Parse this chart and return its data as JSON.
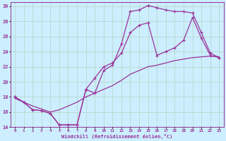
{
  "xlabel": "Windchill (Refroidissement éolien,°C)",
  "background_color": "#cceeff",
  "grid_color": "#aaddcc",
  "line_color": "#993399",
  "xlim": [
    -0.5,
    23.5
  ],
  "ylim": [
    14,
    30.5
  ],
  "xticks": [
    0,
    1,
    2,
    3,
    4,
    5,
    6,
    7,
    8,
    9,
    10,
    11,
    12,
    13,
    14,
    15,
    16,
    17,
    18,
    19,
    20,
    21,
    22,
    23
  ],
  "yticks": [
    14,
    16,
    18,
    20,
    22,
    24,
    26,
    28,
    30
  ],
  "series1_x": [
    0,
    1,
    2,
    3,
    4,
    5,
    6,
    7,
    8,
    9,
    10,
    11,
    12,
    13,
    14,
    15,
    16,
    17,
    18,
    19,
    20,
    21,
    22,
    23
  ],
  "series1_y": [
    18.0,
    17.3,
    16.3,
    16.2,
    15.8,
    14.3,
    14.3,
    14.3,
    19.0,
    18.5,
    21.5,
    22.2,
    25.0,
    29.3,
    29.5,
    30.1,
    29.8,
    29.5,
    29.3,
    29.3,
    29.1,
    26.5,
    23.8,
    23.2
  ],
  "series2_x": [
    0,
    1,
    2,
    3,
    4,
    5,
    6,
    7,
    8,
    9,
    10,
    11,
    12,
    13,
    14,
    15,
    16,
    17,
    18,
    19,
    20,
    21,
    22,
    23
  ],
  "series2_y": [
    18.0,
    17.3,
    16.3,
    16.2,
    15.8,
    14.3,
    14.3,
    14.3,
    19.0,
    20.5,
    22.0,
    22.5,
    23.8,
    26.5,
    27.5,
    27.8,
    23.5,
    24.0,
    24.5,
    25.5,
    28.5,
    25.8,
    23.5,
    23.2
  ],
  "series3_x": [
    0,
    1,
    2,
    3,
    4,
    5,
    6,
    7,
    8,
    9,
    10,
    11,
    12,
    13,
    14,
    15,
    16,
    17,
    18,
    19,
    20,
    21,
    22,
    23
  ],
  "series3_y": [
    17.8,
    17.3,
    16.8,
    16.4,
    16.0,
    16.3,
    16.8,
    17.3,
    18.0,
    18.5,
    19.0,
    19.5,
    20.2,
    21.0,
    21.5,
    22.0,
    22.2,
    22.5,
    22.8,
    23.0,
    23.2,
    23.3,
    23.4,
    23.3
  ]
}
